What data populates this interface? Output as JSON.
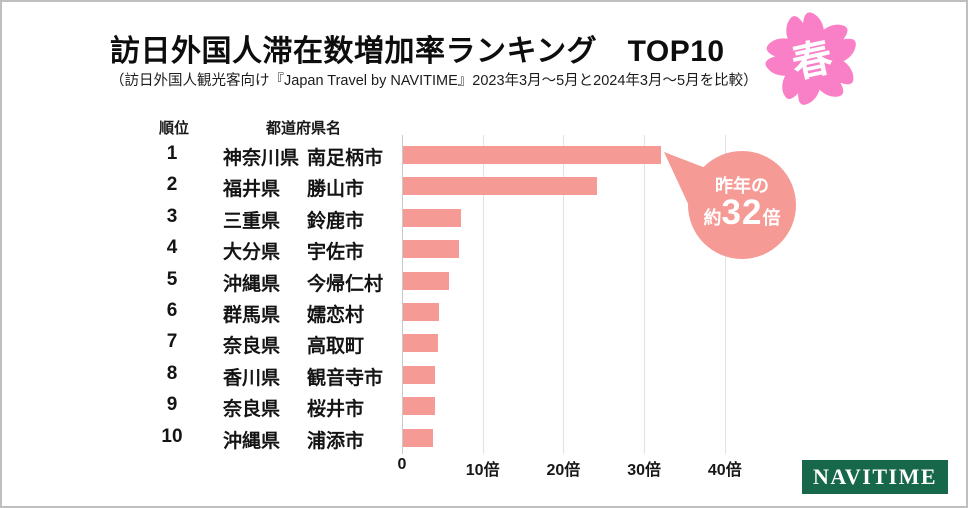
{
  "page": {
    "title": "訪日外国人滞在数増加率ランキング　TOP10",
    "subtitle": "（訪日外国人観光客向け『Japan Travel by NAVITIME』2023年3月～5月と2024年3月～5月を比較）",
    "season_badge": "春"
  },
  "table": {
    "rank_header": "順位",
    "prefecture_header": "都道府県名"
  },
  "callout": {
    "line1": "昨年の",
    "prefix": "約",
    "number": "32",
    "suffix": "倍"
  },
  "logo": {
    "text": "NAVITIME",
    "bg_color": "#17674B"
  },
  "colors": {
    "bar": "#F59A94",
    "badge_pink": "#F980C7",
    "logo_green": "#17674B"
  },
  "chart_data": {
    "type": "bar",
    "orientation": "horizontal",
    "title": "訪日外国人滞在数増加率ランキング　TOP10",
    "subtitle": "（訪日外国人観光客向け『Japan Travel by NAVITIME』2023年3月～5月と2024年3月～5月を比較）",
    "unit": "倍",
    "xlim": [
      0,
      40
    ],
    "grid": true,
    "x_ticks": [
      "0",
      "10倍",
      "20倍",
      "30倍",
      "40倍"
    ],
    "x_tick_values": [
      0,
      10,
      20,
      30,
      40
    ],
    "annotation": "昨年の約32倍",
    "rows": [
      {
        "rank": "1",
        "prefecture": "神奈川県",
        "city": "南足柄市",
        "value": 32
      },
      {
        "rank": "2",
        "prefecture": "福井県",
        "city": "勝山市",
        "value": 24
      },
      {
        "rank": "3",
        "prefecture": "三重県",
        "city": "鈴鹿市",
        "value": 7.2
      },
      {
        "rank": "4",
        "prefecture": "大分県",
        "city": "宇佐市",
        "value": 6.9
      },
      {
        "rank": "5",
        "prefecture": "沖縄県",
        "city": "今帰仁村",
        "value": 5.7
      },
      {
        "rank": "6",
        "prefecture": "群馬県",
        "city": "嬬恋村",
        "value": 4.4
      },
      {
        "rank": "7",
        "prefecture": "奈良県",
        "city": "高取町",
        "value": 4.3
      },
      {
        "rank": "8",
        "prefecture": "香川県",
        "city": "観音寺市",
        "value": 4.0
      },
      {
        "rank": "9",
        "prefecture": "奈良県",
        "city": "桜井市",
        "value": 4.0
      },
      {
        "rank": "10",
        "prefecture": "沖縄県",
        "city": "浦添市",
        "value": 3.7
      }
    ]
  }
}
